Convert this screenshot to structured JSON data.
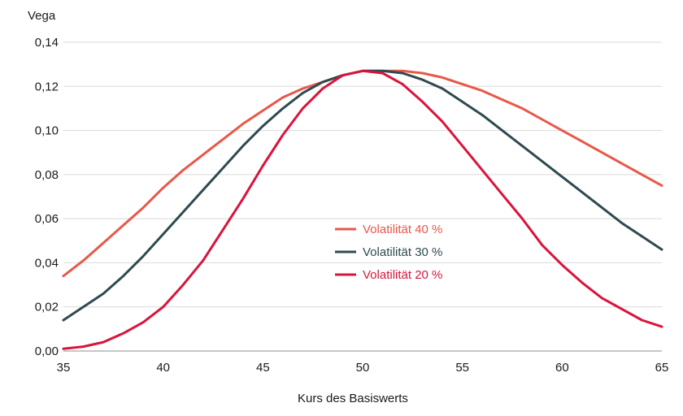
{
  "chart_data": {
    "type": "line",
    "title": "",
    "xlabel": "Kurs des Basiswerts",
    "ylabel": "Vega",
    "xlim": [
      35,
      65
    ],
    "ylim": [
      0,
      0.14
    ],
    "x_ticks": [
      35,
      40,
      45,
      50,
      55,
      60,
      65
    ],
    "x_tick_labels": [
      "35",
      "40",
      "45",
      "50",
      "55",
      "60",
      "65"
    ],
    "y_ticks": [
      0,
      0.02,
      0.04,
      0.06,
      0.08,
      0.1,
      0.12,
      0.14
    ],
    "y_tick_labels": [
      "0,00",
      "0,02",
      "0,04",
      "0,06",
      "0,08",
      "0,10",
      "0,12",
      "0,14"
    ],
    "grid": "horizontal",
    "legend_position": "center",
    "x": [
      35,
      36,
      37,
      38,
      39,
      40,
      41,
      42,
      43,
      44,
      45,
      46,
      47,
      48,
      49,
      50,
      51,
      52,
      53,
      54,
      55,
      56,
      57,
      58,
      59,
      60,
      61,
      62,
      63,
      64,
      65
    ],
    "series": [
      {
        "name": "Volatilität 40 %",
        "color": "#e8584a",
        "values": [
          0.034,
          0.041,
          0.049,
          0.057,
          0.065,
          0.074,
          0.082,
          0.089,
          0.096,
          0.103,
          0.109,
          0.115,
          0.119,
          0.122,
          0.125,
          0.127,
          0.127,
          0.127,
          0.126,
          0.124,
          0.121,
          0.118,
          0.114,
          0.11,
          0.105,
          0.1,
          0.095,
          0.09,
          0.085,
          0.08,
          0.075
        ]
      },
      {
        "name": "Volatilität 30 %",
        "color": "#2e4a4f",
        "values": [
          0.014,
          0.02,
          0.026,
          0.034,
          0.043,
          0.053,
          0.063,
          0.073,
          0.083,
          0.093,
          0.102,
          0.11,
          0.117,
          0.122,
          0.125,
          0.127,
          0.127,
          0.126,
          0.123,
          0.119,
          0.113,
          0.107,
          0.1,
          0.093,
          0.086,
          0.079,
          0.072,
          0.065,
          0.058,
          0.052,
          0.046
        ]
      },
      {
        "name": "Volatilität 20 %",
        "color": "#d9143c",
        "values": [
          0.001,
          0.002,
          0.004,
          0.008,
          0.013,
          0.02,
          0.03,
          0.041,
          0.055,
          0.069,
          0.084,
          0.098,
          0.11,
          0.119,
          0.125,
          0.127,
          0.126,
          0.121,
          0.113,
          0.104,
          0.093,
          0.082,
          0.071,
          0.06,
          0.048,
          0.039,
          0.031,
          0.024,
          0.019,
          0.014,
          0.011
        ]
      }
    ]
  }
}
